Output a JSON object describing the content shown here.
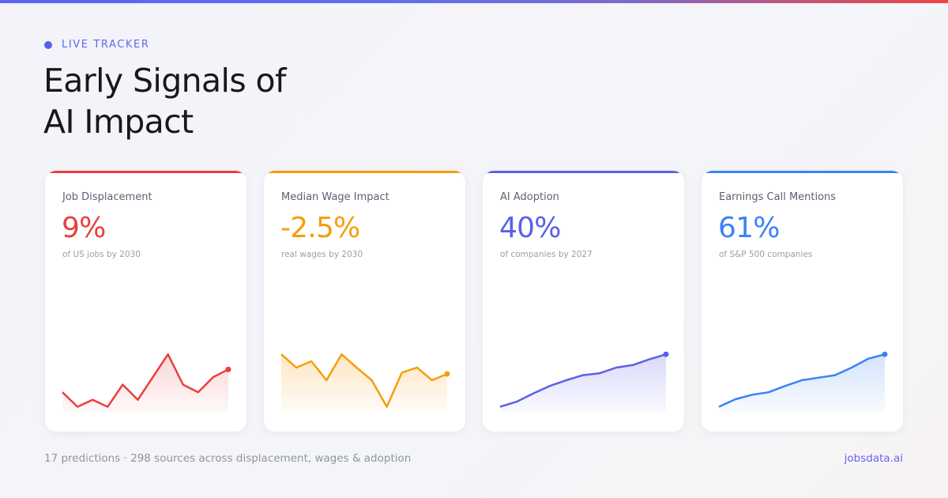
{
  "header": {
    "eyebrow": "LIVE TRACKER",
    "title_line1": "Early Signals of",
    "title_line2": "AI Impact"
  },
  "colors": {
    "brand": "#6366f1",
    "red": "#ef4444",
    "orange": "#f59e0b",
    "indigo": "#5b5fe8",
    "blue": "#3b82f6"
  },
  "cards": [
    {
      "name": "Job Displacement",
      "value": "9%",
      "sub": "of US jobs by 2030",
      "color": "#e8403f",
      "fill": "#fbd6d6",
      "spark": [
        31,
        8,
        19,
        8,
        43,
        19,
        55,
        91,
        43,
        31,
        55,
        67
      ]
    },
    {
      "name": "Median Wage Impact",
      "value": "-2.5%",
      "sub": "real wages by 2030",
      "color": "#f59e0b",
      "fill": "#fde6c4",
      "spark": [
        91,
        70,
        80,
        50,
        91,
        70,
        50,
        8,
        62,
        70,
        50,
        60
      ]
    },
    {
      "name": "AI Adoption",
      "value": "40%",
      "sub": "of companies by 2027",
      "color": "#5b5fe8",
      "fill": "#d9dafc",
      "spark": [
        8,
        16,
        29,
        41,
        50,
        58,
        61,
        70,
        74,
        83,
        91
      ]
    },
    {
      "name": "Earnings Call Mentions",
      "value": "61%",
      "sub": "of S&P 500 companies",
      "color": "#3b82f6",
      "fill": "#d3e3fc",
      "spark": [
        8,
        20,
        27,
        31,
        41,
        50,
        54,
        58,
        70,
        84,
        91
      ]
    }
  ],
  "footer": {
    "summary": "17 predictions · 298 sources across displacement, wages & adoption",
    "site": "jobsdata.ai"
  }
}
